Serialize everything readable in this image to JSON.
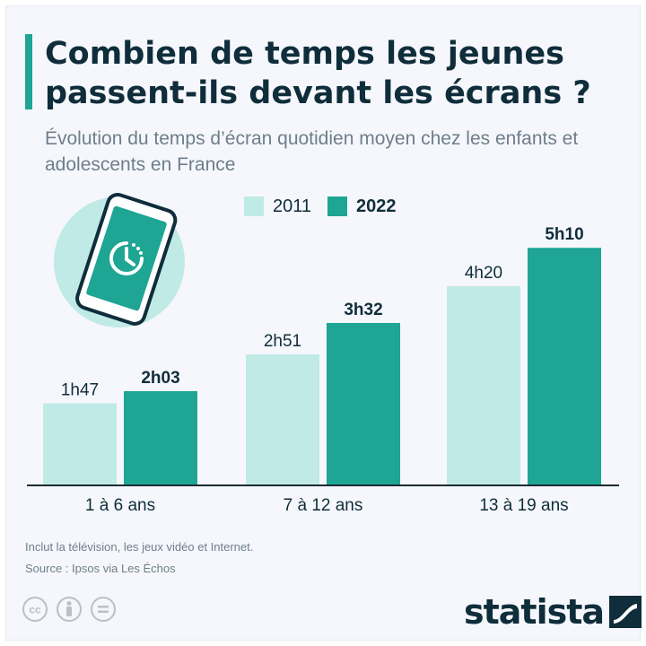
{
  "header": {
    "title": "Combien de temps les jeunes passent-ils devant les écrans ?",
    "subtitle": "Évolution du temps d’écran quotidien moyen chez les enfants et adolescents en France"
  },
  "colors": {
    "s2011": "#bfeae6",
    "s2022": "#1ea594",
    "text": "#0f2d3a",
    "muted": "#6e7e8a",
    "illustration_circle": "#bfeae6"
  },
  "chart_data": {
    "type": "bar",
    "categories": [
      "1 à 6 ans",
      "7 à 12 ans",
      "13 à 19 ans"
    ],
    "series": [
      {
        "name": "2011",
        "values": [
          107,
          171,
          260
        ],
        "labels": [
          "1h47",
          "2h51",
          "4h20"
        ]
      },
      {
        "name": "2022",
        "values": [
          123,
          212,
          310
        ],
        "labels": [
          "2h03",
          "3h32",
          "5h10"
        ]
      }
    ],
    "units": "minutes per day",
    "legend_position": "top-center",
    "grid": false,
    "ylim": [
      0,
      322
    ]
  },
  "illustration": {
    "icon": "smartphone-clock-icon"
  },
  "footer": {
    "note": "Inclut la télévision, les jeux vidéo et Internet.",
    "source": "Source : Ipsos via Les Échos",
    "license_icons": [
      "creative-commons-icon",
      "attribution-icon",
      "no-derivatives-icon"
    ],
    "brand": "statista"
  }
}
